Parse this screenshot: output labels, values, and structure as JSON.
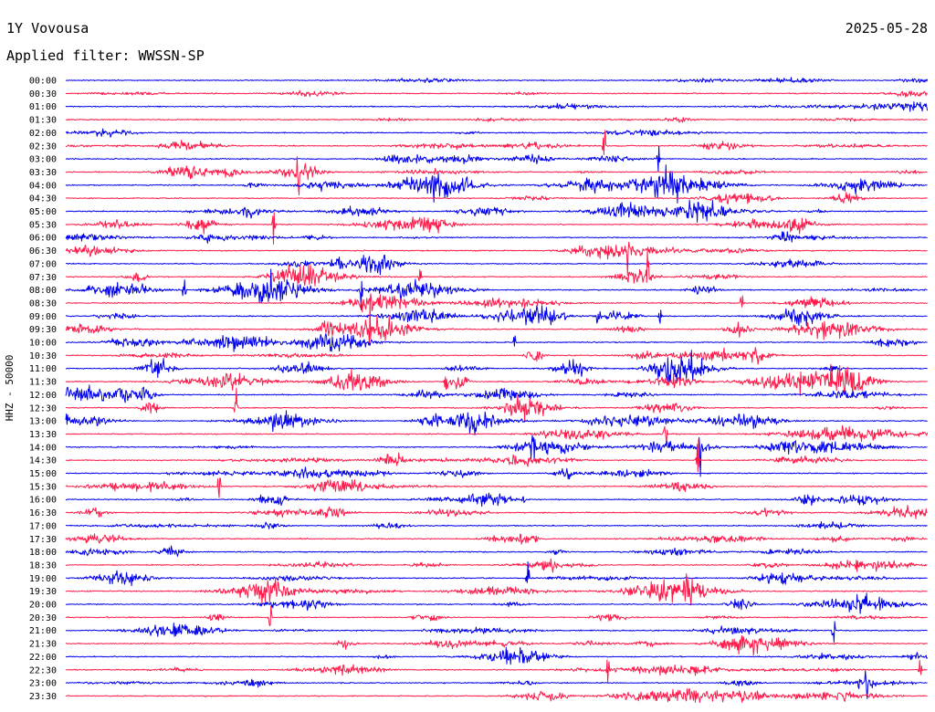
{
  "station": "1Y Vovousa",
  "date": "2025-05-28",
  "filter_label": "Applied filter: WWSSN-SP",
  "channel_label": "HHZ - 50000",
  "colors": {
    "background": "#ffffff",
    "text": "#000000",
    "trace_even": "#0000ee",
    "trace_odd": "#ff1a4a"
  },
  "chart_data": {
    "type": "line",
    "subtype": "helicorder",
    "title": "1Y Vovousa",
    "ylabel": "HHZ - 50000",
    "row_labels": [
      "00:00",
      "00:30",
      "01:00",
      "01:30",
      "02:00",
      "02:30",
      "03:00",
      "03:30",
      "04:00",
      "04:30",
      "05:00",
      "05:30",
      "06:00",
      "06:30",
      "07:00",
      "07:30",
      "08:00",
      "08:30",
      "09:00",
      "09:30",
      "10:00",
      "10:30",
      "11:00",
      "11:30",
      "12:00",
      "12:30",
      "13:00",
      "13:30",
      "14:00",
      "14:30",
      "15:00",
      "15:30",
      "16:00",
      "16:30",
      "17:00",
      "17:30",
      "18:00",
      "18:30",
      "19:00",
      "19:30",
      "20:00",
      "20:30",
      "21:00",
      "21:30",
      "22:00",
      "22:30",
      "23:00",
      "23:30"
    ],
    "row_minutes": 30,
    "series_colors": [
      "#0000ee",
      "#ff1a4a"
    ],
    "activity_level": [
      0.25,
      0.3,
      0.25,
      0.3,
      0.35,
      0.45,
      0.5,
      0.75,
      0.7,
      0.55,
      0.6,
      0.55,
      0.5,
      0.5,
      0.55,
      0.7,
      0.8,
      0.75,
      0.85,
      0.8,
      0.85,
      0.95,
      1.0,
      0.9,
      0.7,
      0.65,
      0.6,
      0.6,
      0.65,
      0.55,
      0.5,
      0.55,
      0.7,
      0.6,
      0.45,
      0.5,
      0.55,
      0.5,
      0.6,
      0.55,
      0.55,
      0.45,
      0.5,
      0.45,
      0.45,
      0.6,
      0.55,
      0.5
    ],
    "grid": false,
    "legend": "none"
  }
}
